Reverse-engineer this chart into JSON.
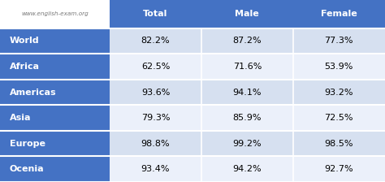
{
  "watermark": "www.english-exam.org",
  "columns": [
    "Total",
    "Male",
    "Female"
  ],
  "rows": [
    "World",
    "Africa",
    "Americas",
    "Asia",
    "Europe",
    "Ocenia"
  ],
  "values": [
    [
      "82.2%",
      "87.2%",
      "77.3%"
    ],
    [
      "62.5%",
      "71.6%",
      "53.9%"
    ],
    [
      "93.6%",
      "94.1%",
      "93.2%"
    ],
    [
      "79.3%",
      "85.9%",
      "72.5%"
    ],
    [
      "98.8%",
      "99.2%",
      "98.5%"
    ],
    [
      "93.4%",
      "94.2%",
      "92.7%"
    ]
  ],
  "header_bg": "#4472C4",
  "row_label_bg": "#4472C4",
  "data_bg_light": "#D6E0F0",
  "data_bg_lighter": "#EBF0FA",
  "header_text_color": "#FFFFFF",
  "row_label_text_color": "#FFFFFF",
  "data_text_color": "#000000",
  "watermark_color": "#777777",
  "fig_width": 4.74,
  "fig_height": 2.24,
  "dpi": 100
}
